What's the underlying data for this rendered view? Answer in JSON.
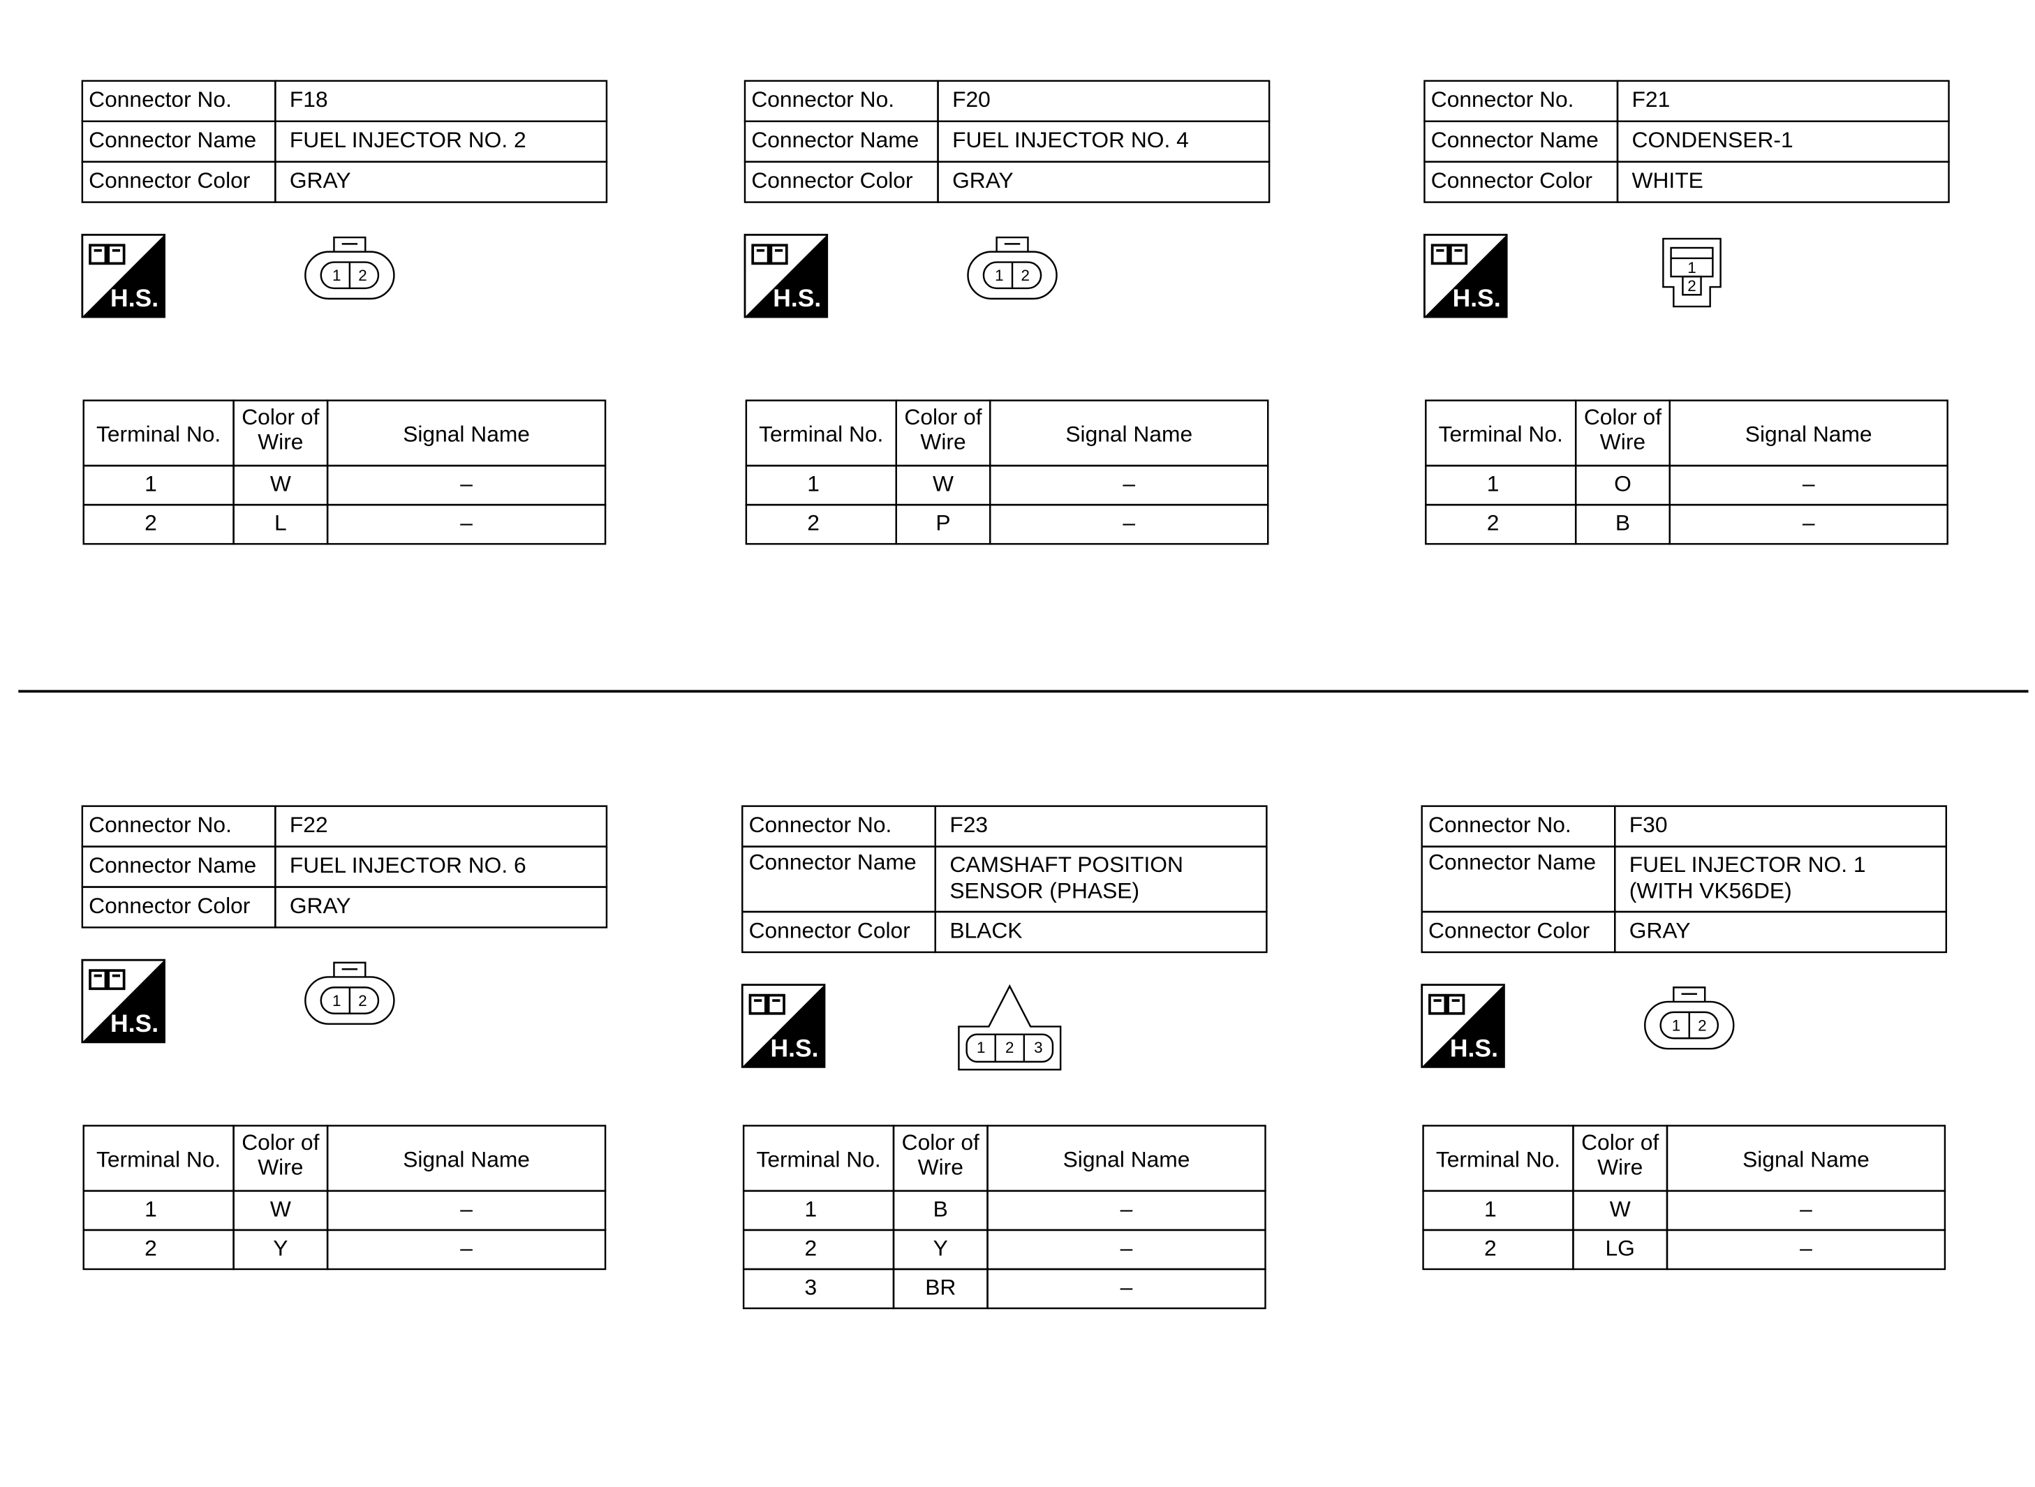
{
  "connectors": [
    {
      "info": [
        [
          "Connector No.",
          [
            "F18"
          ]
        ],
        [
          "Connector Name",
          [
            "FUEL INJECTOR NO. 2"
          ]
        ],
        [
          "Connector Color",
          [
            "GRAY"
          ]
        ]
      ],
      "icon_label": "H.S.",
      "shape": "oval",
      "pins": [
        "1",
        "2"
      ],
      "terminal_header": [
        "Terminal No.",
        [
          "Color of",
          "Wire"
        ],
        "Signal Name"
      ],
      "terminals": [
        [
          "1",
          "W",
          "–"
        ],
        [
          "2",
          "L",
          "–"
        ]
      ]
    },
    {
      "info": [
        [
          "Connector No.",
          [
            "F20"
          ]
        ],
        [
          "Connector Name",
          [
            "FUEL INJECTOR NO. 4"
          ]
        ],
        [
          "Connector Color",
          [
            "GRAY"
          ]
        ]
      ],
      "icon_label": "H.S.",
      "shape": "oval",
      "pins": [
        "1",
        "2"
      ],
      "terminal_header": [
        "Terminal No.",
        [
          "Color of",
          "Wire"
        ],
        "Signal Name"
      ],
      "terminals": [
        [
          "1",
          "W",
          "–"
        ],
        [
          "2",
          "P",
          "–"
        ]
      ]
    },
    {
      "info": [
        [
          "Connector No.",
          [
            "F21"
          ]
        ],
        [
          "Connector Name",
          [
            "CONDENSER-1"
          ]
        ],
        [
          "Connector Color",
          [
            "WHITE"
          ]
        ]
      ],
      "icon_label": "H.S.",
      "shape": "box",
      "pins": [
        "1",
        "2"
      ],
      "terminal_header": [
        "Terminal No.",
        [
          "Color of",
          "Wire"
        ],
        "Signal Name"
      ],
      "terminals": [
        [
          "1",
          "O",
          "–"
        ],
        [
          "2",
          "B",
          "–"
        ]
      ]
    },
    {
      "info": [
        [
          "Connector No.",
          [
            "F22"
          ]
        ],
        [
          "Connector Name",
          [
            "FUEL INJECTOR NO. 6"
          ]
        ],
        [
          "Connector Color",
          [
            "GRAY"
          ]
        ]
      ],
      "icon_label": "H.S.",
      "shape": "oval",
      "pins": [
        "1",
        "2"
      ],
      "terminal_header": [
        "Terminal No.",
        [
          "Color of",
          "Wire"
        ],
        "Signal Name"
      ],
      "terminals": [
        [
          "1",
          "W",
          "–"
        ],
        [
          "2",
          "Y",
          "–"
        ]
      ]
    },
    {
      "info": [
        [
          "Connector No.",
          [
            "F23"
          ]
        ],
        [
          "Connector Name",
          [
            "CAMSHAFT POSITION",
            "SENSOR (PHASE)"
          ]
        ],
        [
          "Connector Color",
          [
            "BLACK"
          ]
        ]
      ],
      "icon_label": "H.S.",
      "shape": "triangle",
      "pins": [
        "1",
        "2",
        "3"
      ],
      "terminal_header": [
        "Terminal No.",
        [
          "Color of",
          "Wire"
        ],
        "Signal Name"
      ],
      "terminals": [
        [
          "1",
          "B",
          "–"
        ],
        [
          "2",
          "Y",
          "–"
        ],
        [
          "3",
          "BR",
          "–"
        ]
      ]
    },
    {
      "info": [
        [
          "Connector No.",
          [
            "F30"
          ]
        ],
        [
          "Connector Name",
          [
            "FUEL INJECTOR NO. 1",
            "(WITH VK56DE)"
          ]
        ],
        [
          "Connector Color",
          [
            "GRAY"
          ]
        ]
      ],
      "icon_label": "H.S.",
      "shape": "oval",
      "pins": [
        "1",
        "2"
      ],
      "terminal_header": [
        "Terminal No.",
        [
          "Color of",
          "Wire"
        ],
        "Signal Name"
      ],
      "terminals": [
        [
          "1",
          "W",
          "–"
        ],
        [
          "2",
          "LG",
          "–"
        ]
      ]
    }
  ]
}
